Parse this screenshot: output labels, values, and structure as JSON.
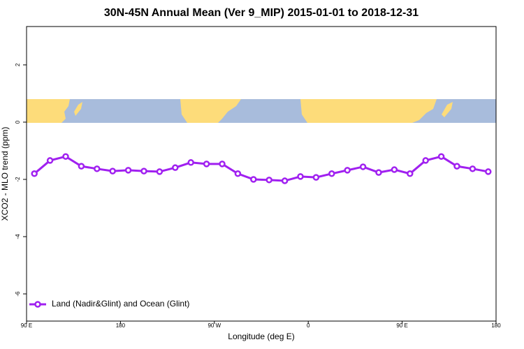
{
  "chart_data": {
    "type": "line",
    "title": "30N-45N Annual Mean (Ver 9_MIP)   2015-01-01 to 2018-12-31",
    "x_label": "Longitude (deg E)",
    "y_label": "XCO2 - MLO trend (ppm)",
    "x": [
      97.5,
      112.5,
      127.5,
      142.5,
      157.5,
      172.5,
      187.5,
      202.5,
      217.5,
      232.5,
      247.5,
      262.5,
      277.5,
      292.5,
      307.5,
      322.5,
      337.5,
      352.5,
      367.5,
      382.5,
      397.5,
      412.5,
      427.5,
      442.5,
      457.5,
      472.5,
      487.5,
      502.5,
      517.5,
      532.5
    ],
    "series": [
      {
        "name": "Land (Nadir&Glint) and Ocean (Glint)",
        "color": "#a020f0",
        "values": [
          -1.8,
          -1.34,
          -1.2,
          -1.54,
          -1.63,
          -1.71,
          -1.68,
          -1.71,
          -1.73,
          -1.59,
          -1.41,
          -1.46,
          -1.46,
          -1.8,
          -2.0,
          -2.02,
          -2.05,
          -1.9,
          -1.93,
          -1.8,
          -1.68,
          -1.56,
          -1.76,
          -1.66,
          -1.8,
          -1.34,
          -1.2,
          -1.54,
          -1.63,
          -1.73
        ]
      }
    ],
    "xlim": [
      90,
      540
    ],
    "xticks": [
      {
        "value": 90,
        "label": "90 E"
      },
      180,
      {
        "value": 270,
        "label": "90 W"
      },
      {
        "value": 360,
        "label": "0"
      },
      {
        "value": 450,
        "label": "90 E"
      },
      {
        "value": 540,
        "label": "180"
      }
    ],
    "ylim": [
      -6.95,
      3.34
    ],
    "yticks": [
      2,
      0,
      -2,
      -4,
      -6
    ],
    "legend": "bottom-left"
  }
}
